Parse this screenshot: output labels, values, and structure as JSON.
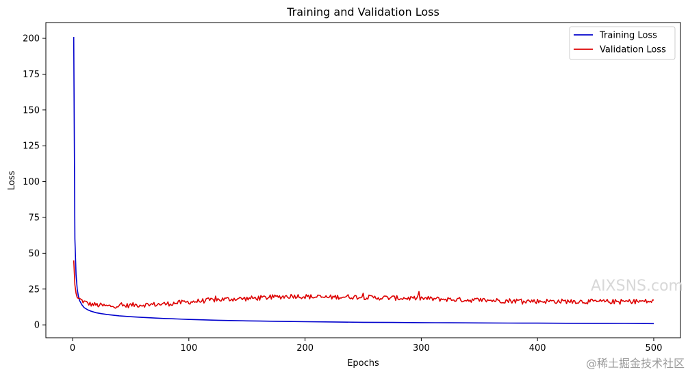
{
  "chart_data": {
    "type": "line",
    "title": "Training and Validation Loss",
    "xlabel": "Epochs",
    "ylabel": "Loss",
    "xlim": [
      -23,
      523
    ],
    "ylim": [
      -9,
      211
    ],
    "xticks": [
      0,
      100,
      200,
      300,
      400,
      500
    ],
    "yticks": [
      0,
      25,
      50,
      75,
      100,
      125,
      150,
      175,
      200
    ],
    "grid": false,
    "legend_position": "top-right",
    "series": [
      {
        "name": "Training Loss",
        "color": "#0000cc",
        "x": [
          1,
          2,
          3,
          4,
          5,
          6,
          8,
          10,
          13,
          16,
          20,
          25,
          30,
          40,
          50,
          60,
          70,
          80,
          90,
          100,
          125,
          150,
          175,
          200,
          225,
          250,
          275,
          300,
          325,
          350,
          375,
          400,
          425,
          450,
          475,
          500
        ],
        "y": [
          201,
          60,
          35,
          25,
          20,
          17,
          14,
          12,
          10.5,
          9.5,
          8.5,
          7.8,
          7.2,
          6.3,
          5.7,
          5.2,
          4.8,
          4.4,
          4.1,
          3.8,
          3.2,
          2.8,
          2.5,
          2.2,
          2.0,
          1.8,
          1.7,
          1.55,
          1.45,
          1.35,
          1.25,
          1.2,
          1.12,
          1.05,
          1.0,
          0.9
        ]
      },
      {
        "name": "Validation Loss",
        "color": "#dd0000",
        "x": [
          1,
          2,
          3,
          4,
          6,
          8,
          10,
          15,
          20,
          25,
          30,
          35,
          40,
          45,
          50,
          60,
          70,
          80,
          90,
          100,
          110,
          120,
          130,
          140,
          150,
          160,
          170,
          180,
          190,
          200,
          210,
          220,
          230,
          240,
          250,
          260,
          270,
          280,
          290,
          300,
          310,
          320,
          330,
          340,
          350,
          360,
          370,
          380,
          390,
          400,
          410,
          420,
          430,
          440,
          450,
          460,
          470,
          480,
          490,
          500
        ],
        "y": [
          45,
          28,
          22,
          19,
          18,
          17,
          16,
          14.5,
          14,
          13.5,
          13,
          13.2,
          13.5,
          13.3,
          13.8,
          14,
          14.2,
          14.6,
          15.3,
          16,
          16.6,
          17.3,
          17.8,
          18.2,
          18.3,
          18.8,
          19.2,
          19.7,
          20.2,
          19.8,
          19.4,
          19.2,
          19.6,
          19.6,
          19.3,
          19,
          18.9,
          18.7,
          18.6,
          18.5,
          18.1,
          17.9,
          17.6,
          17.4,
          17.3,
          17.1,
          16.9,
          16.8,
          16.7,
          16.5,
          16.5,
          16.4,
          16.4,
          16.3,
          16.2,
          16.2,
          16.2,
          16.3,
          16.4,
          16.3
        ]
      }
    ]
  },
  "watermarks": {
    "corner": "AIXSNS.com",
    "footer": "@稀土掘金技术社区"
  }
}
